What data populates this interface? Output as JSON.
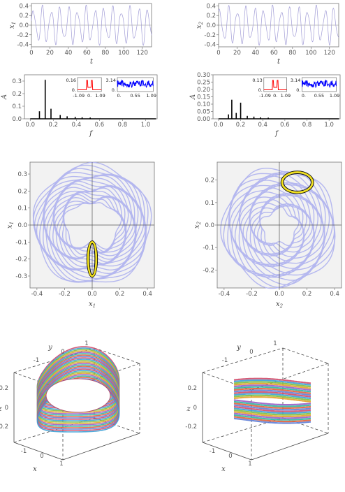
{
  "chart_data": [
    {
      "id": "ts1",
      "type": "line",
      "xlabel": "t",
      "ylabel": "x1",
      "xlim": [
        0,
        130
      ],
      "ylim": [
        -0.45,
        0.45
      ],
      "x_ticks": [
        "0",
        "20",
        "40",
        "60",
        "80",
        "100",
        "120"
      ],
      "y_ticks": [
        "0.4",
        "0.2",
        "0.0",
        "-0.2",
        "-0.4"
      ],
      "series": [
        {
          "description": "quasi-periodic oscillation",
          "amplitude": 0.42,
          "period": 9.5,
          "color": "#a09bd6"
        }
      ]
    },
    {
      "id": "ts2",
      "type": "line",
      "xlabel": "t",
      "ylabel": "x2",
      "xlim": [
        0,
        130
      ],
      "ylim": [
        -0.45,
        0.45
      ],
      "x_ticks": [
        "0",
        "20",
        "40",
        "60",
        "80",
        "100",
        "120"
      ],
      "y_ticks": [
        "0.4",
        "0.2",
        "0.0",
        "-0.2",
        "-0.4"
      ],
      "series": [
        {
          "amplitude": 0.42,
          "period": 9.5,
          "color": "#a09bd6"
        }
      ]
    },
    {
      "id": "spec1",
      "type": "bar",
      "xlabel": "f",
      "ylabel": "A",
      "xlim": [
        -0.05,
        1.1
      ],
      "ylim": [
        0,
        0.35
      ],
      "x_ticks": [
        "0.0",
        "0.2",
        "0.4",
        "0.6",
        "0.8",
        "1.0"
      ],
      "y_ticks": [
        "0.3",
        "0.2",
        "0.1",
        "0.0"
      ],
      "peaks": [
        [
          0.08,
          0.06
        ],
        [
          0.13,
          0.31
        ],
        [
          0.18,
          0.08
        ],
        [
          0.26,
          0.03
        ],
        [
          0.32,
          0.02
        ],
        [
          0.39,
          0.015
        ],
        [
          0.45,
          0.012
        ],
        [
          0.52,
          0.01
        ]
      ],
      "insets": [
        {
          "color": "#ff0000",
          "ymax_label": "0.16",
          "y0_label": "0.",
          "x_ticks": [
            "-1.09",
            "0.",
            "1.09"
          ]
        },
        {
          "color": "#0000ff",
          "ymax_label": "3.14",
          "y0_label": "0.",
          "x_ticks": [
            "0.",
            "0.55",
            "1.09"
          ]
        }
      ]
    },
    {
      "id": "spec2",
      "type": "bar",
      "xlabel": "f",
      "ylabel": "A",
      "xlim": [
        -0.05,
        1.1
      ],
      "ylim": [
        0,
        0.3
      ],
      "x_ticks": [
        "0.0",
        "0.2",
        "0.4",
        "0.6",
        "0.8",
        "1.0"
      ],
      "y_ticks": [
        "0.30",
        "0.25",
        "0.20",
        "0.15",
        "0.10",
        "0.05",
        "0.00"
      ],
      "peaks": [
        [
          0.09,
          0.03
        ],
        [
          0.12,
          0.13
        ],
        [
          0.16,
          0.04
        ],
        [
          0.2,
          0.11
        ],
        [
          0.26,
          0.02
        ],
        [
          0.32,
          0.015
        ],
        [
          0.38,
          0.01
        ],
        [
          0.45,
          0.008
        ]
      ],
      "insets": [
        {
          "color": "#ff0000",
          "ymax_label": "0.13",
          "y0_label": "0.",
          "x_ticks": [
            "-1.09",
            "0.",
            "1.09"
          ]
        },
        {
          "color": "#0000ff",
          "ymax_label": "3.14",
          "y0_label": "0.",
          "x_ticks": [
            "0.",
            "0.55",
            "1.09"
          ]
        }
      ]
    },
    {
      "id": "phase1",
      "type": "line",
      "xlabel": "x1",
      "ylabel": "x1",
      "xlim": [
        -0.45,
        0.45
      ],
      "ylim": [
        -0.37,
        0.37
      ],
      "x_ticks": [
        "-0.4",
        "-0.2",
        "0.0",
        "0.2",
        "0.4"
      ],
      "y_ticks": [
        "0.3",
        "0.2",
        "0.1",
        "0.0",
        "-0.1",
        "-0.2",
        "-0.3"
      ],
      "band_color": "#b4b7ef",
      "highlight": {
        "center": [
          0.0,
          -0.2
        ],
        "rx": 0.03,
        "ry": 0.1
      }
    },
    {
      "id": "phase2",
      "type": "line",
      "xlabel": "x2",
      "ylabel": "x2",
      "xlim": [
        -0.45,
        0.45
      ],
      "ylim": [
        -0.28,
        0.28
      ],
      "x_ticks": [
        "-0.4",
        "-0.2",
        "0.0",
        "0.2",
        "0.4"
      ],
      "y_ticks": [
        "0.2",
        "0.1",
        "0.0",
        "-0.1",
        "-0.2"
      ],
      "band_color": "#b4b7ef",
      "highlight": {
        "center": [
          0.13,
          0.19
        ],
        "rx": 0.11,
        "ry": 0.045
      }
    },
    {
      "id": "surf1",
      "type": "scatter",
      "axis_labels": {
        "x": "x",
        "y": "y",
        "z": "z"
      },
      "tick_labels": [
        "-1",
        "0",
        "1",
        "0.2",
        "0",
        "-0.2",
        "-1",
        "0",
        "1"
      ]
    },
    {
      "id": "surf2",
      "type": "scatter",
      "axis_labels": {
        "x": "x",
        "y": "y",
        "z": "z"
      },
      "tick_labels": [
        "-1",
        "0",
        "1",
        "0.2",
        "0",
        "-0.2",
        "-1",
        "0",
        "1"
      ]
    }
  ]
}
